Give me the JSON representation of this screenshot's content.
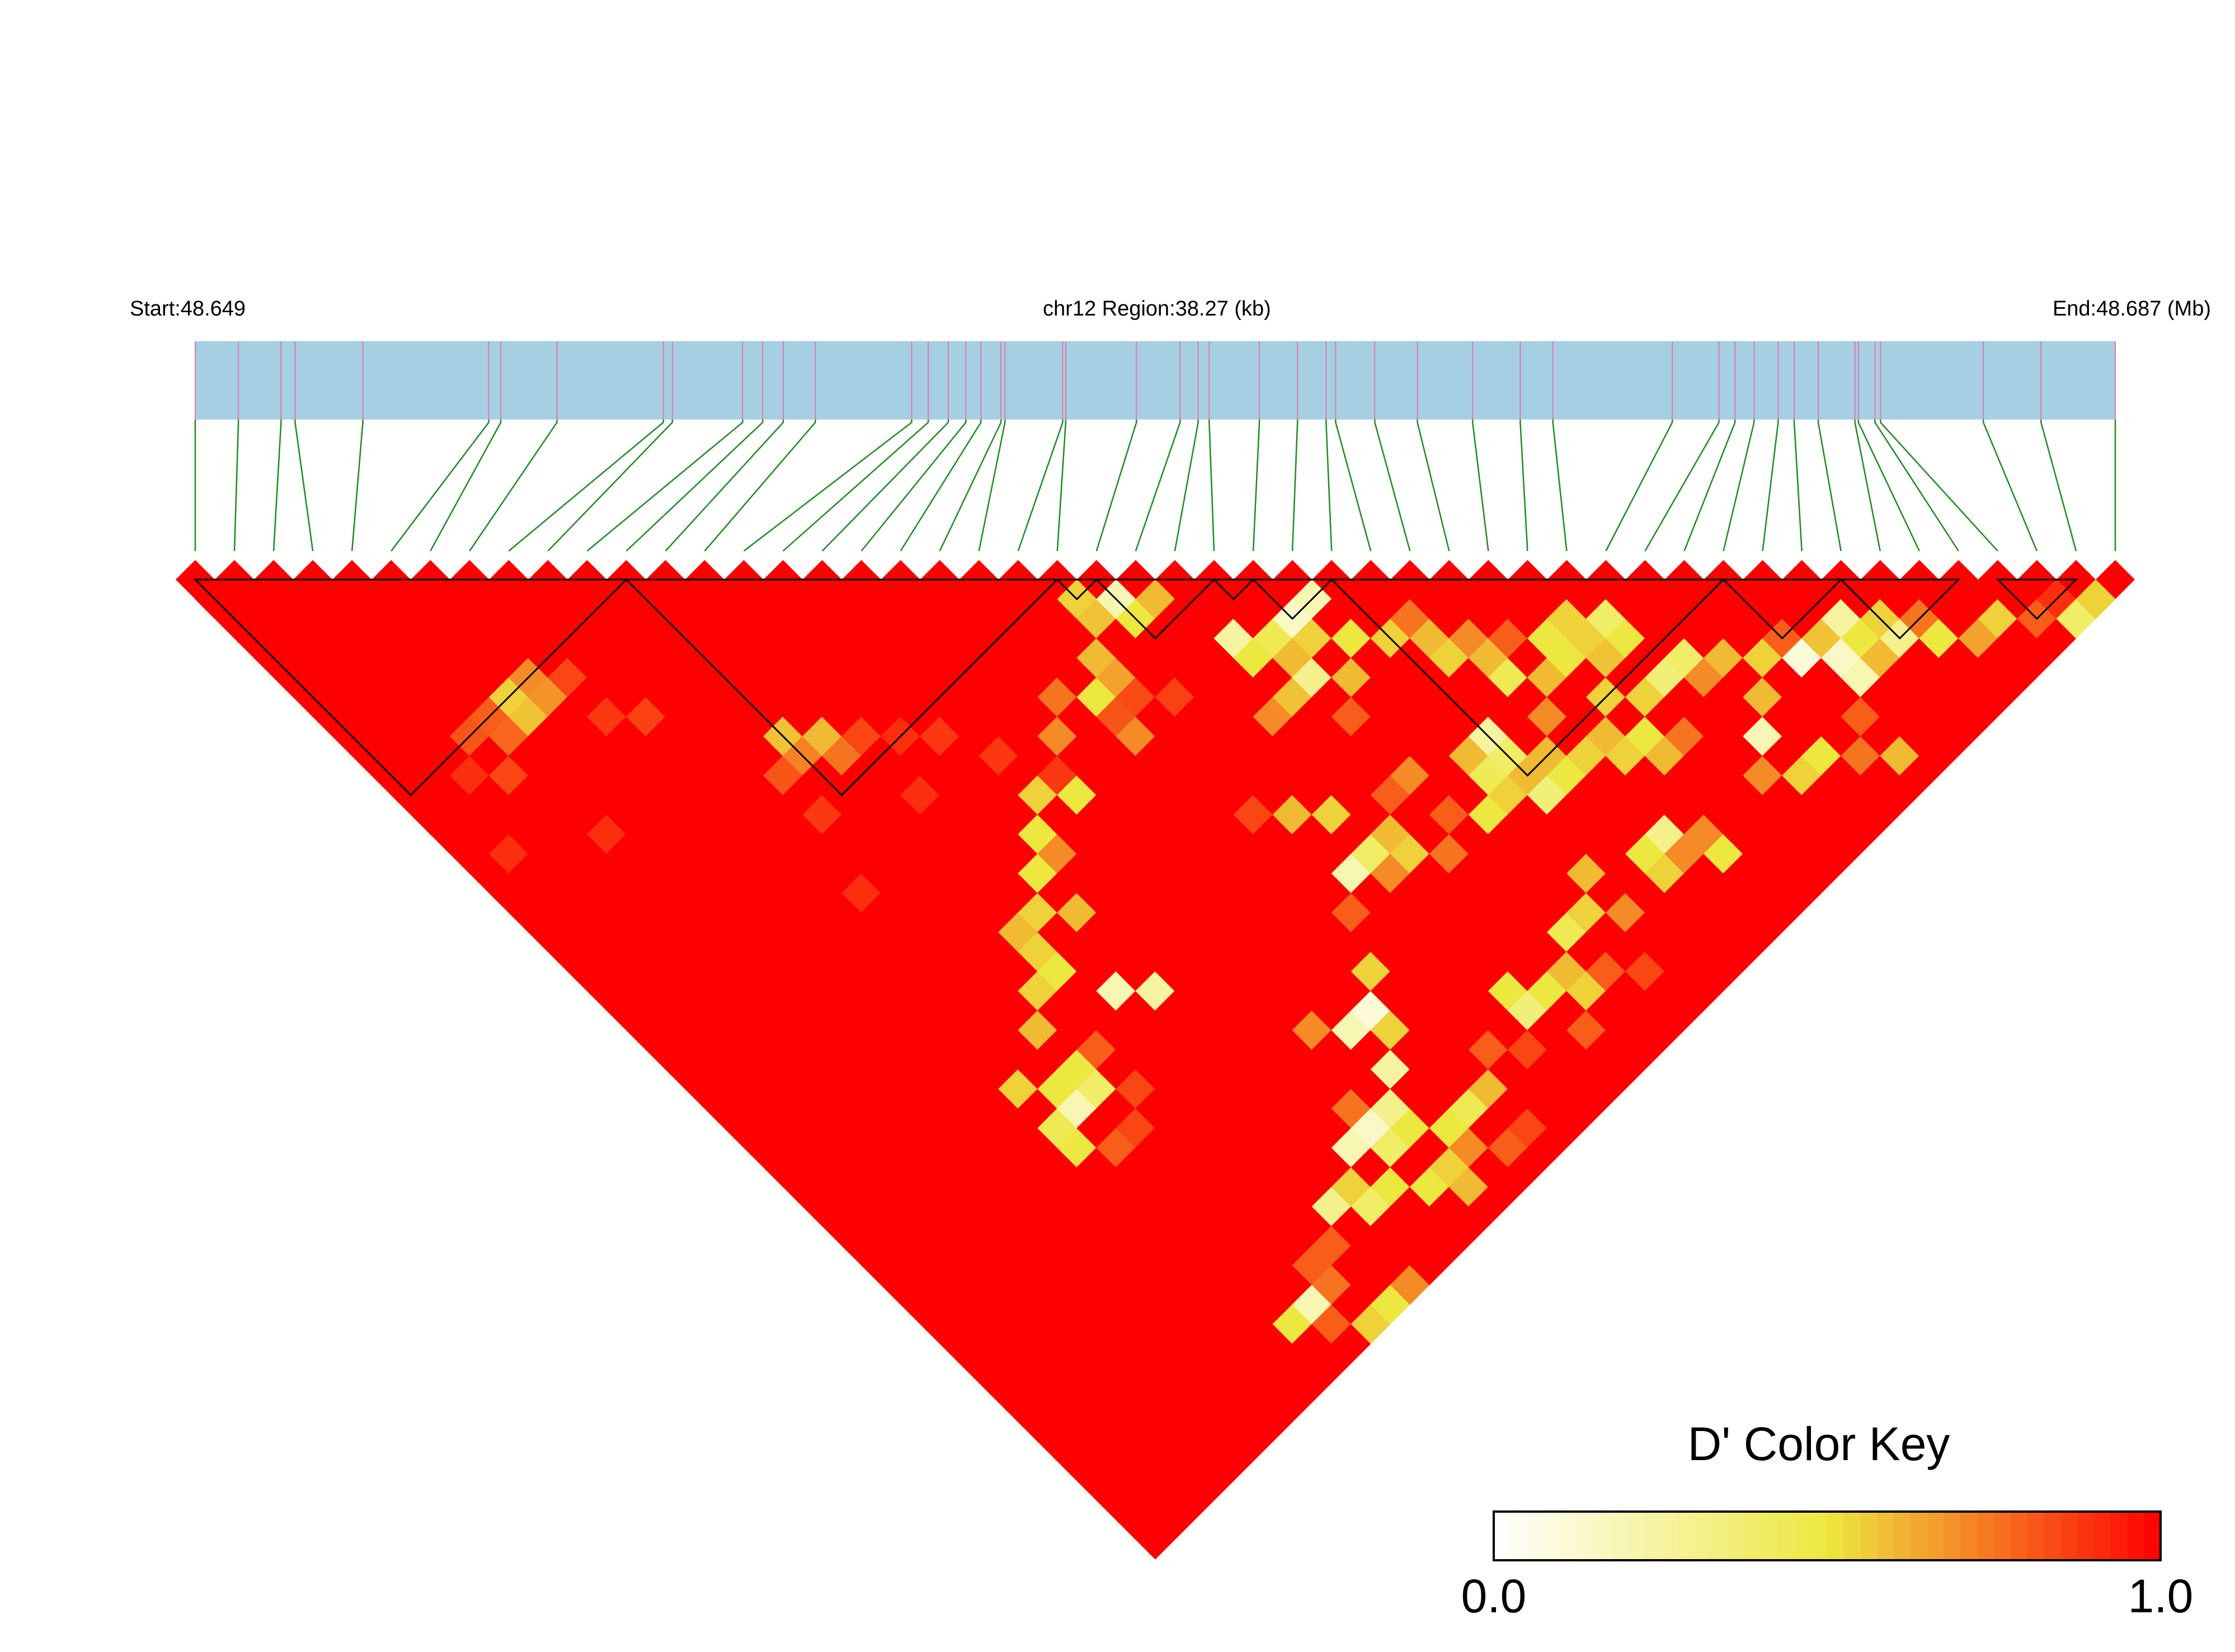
{
  "chart_data": {
    "type": "heatmap",
    "header": {
      "start_label": "Start:48.649",
      "region_label": "chr12 Region:38.27 (kb)",
      "end_label": "End:48.687 (Mb)"
    },
    "snp_count": 50,
    "snp_positions_kb": [
      0,
      0.86,
      1.71,
      1.99,
      3.34,
      5.85,
      6.09,
      7.21,
      9.33,
      9.51,
      10.91,
      11.31,
      11.72,
      12.36,
      14.28,
      14.61,
      15.01,
      15.36,
      15.66,
      16.06,
      16.14,
      17.29,
      17.35,
      18.76,
      19.63,
      19.99,
      20.21,
      21.21,
      21.97,
      22.54,
      22.73,
      23.51,
      24.36,
      25.46,
      26.41,
      27.06,
      29.44,
      30.37,
      30.69,
      31.07,
      31.55,
      31.87,
      32.35,
      33.08,
      33.15,
      33.48,
      33.59,
      35.64,
      36.79,
      38.27
    ],
    "color_scale": {
      "low_color": "#ffffff",
      "mid_color": "#ede840",
      "high_color": "#ff0000",
      "min": 0.0,
      "max": 1.0
    },
    "default_value": 1.0,
    "value_points": [
      {
        "i": 3,
        "j": 11,
        "v": 0.82
      },
      {
        "i": 4,
        "j": 11,
        "v": 0.8
      },
      {
        "i": 5,
        "j": 11,
        "v": 0.55
      },
      {
        "i": 6,
        "j": 11,
        "v": 0.7
      },
      {
        "i": 4,
        "j": 12,
        "v": 0.78
      },
      {
        "i": 5,
        "j": 12,
        "v": 0.58
      },
      {
        "i": 6,
        "j": 12,
        "v": 0.68
      },
      {
        "i": 7,
        "j": 12,
        "v": 0.85
      },
      {
        "i": 1,
        "j": 15,
        "v": 0.9
      },
      {
        "i": 2,
        "j": 12,
        "v": 0.9
      },
      {
        "i": 3,
        "j": 13,
        "v": 0.85
      },
      {
        "i": 7,
        "j": 14,
        "v": 0.88
      },
      {
        "i": 8,
        "j": 15,
        "v": 0.86
      },
      {
        "i": 4,
        "j": 17,
        "v": 0.9
      },
      {
        "i": 11,
        "j": 19,
        "v": 0.58
      },
      {
        "i": 11,
        "j": 20,
        "v": 0.72
      },
      {
        "i": 12,
        "j": 20,
        "v": 0.6
      },
      {
        "i": 12,
        "j": 21,
        "v": 0.75
      },
      {
        "i": 10,
        "j": 20,
        "v": 0.82
      },
      {
        "i": 13,
        "j": 21,
        "v": 0.85
      },
      {
        "i": 10,
        "j": 22,
        "v": 0.88
      },
      {
        "i": 14,
        "j": 22,
        "v": 0.9
      },
      {
        "i": 15,
        "j": 23,
        "v": 0.88
      },
      {
        "i": 16,
        "j": 25,
        "v": 0.88
      },
      {
        "i": 13,
        "j": 24,
        "v": 0.9
      },
      {
        "i": 9,
        "j": 25,
        "v": 0.9
      },
      {
        "i": 20,
        "j": 27,
        "v": 0.82
      },
      {
        "i": 21,
        "j": 27,
        "v": 0.84
      },
      {
        "i": 17,
        "j": 27,
        "v": 0.88
      },
      {
        "i": 22,
        "j": 28,
        "v": 0.86
      },
      {
        "i": 22,
        "j": 23,
        "v": 0.55
      },
      {
        "i": 22,
        "j": 24,
        "v": 0.58
      },
      {
        "i": 23,
        "j": 24,
        "v": 0.2
      },
      {
        "i": 23,
        "j": 25,
        "v": 0.5
      },
      {
        "i": 24,
        "j": 25,
        "v": 0.6
      },
      {
        "i": 21,
        "j": 25,
        "v": 0.6
      },
      {
        "i": 20,
        "j": 26,
        "v": 0.5
      },
      {
        "i": 21,
        "j": 26,
        "v": 0.65
      },
      {
        "i": 19,
        "j": 25,
        "v": 0.75
      },
      {
        "i": 18,
        "j": 26,
        "v": 0.7
      },
      {
        "i": 20,
        "j": 28,
        "v": 0.7
      },
      {
        "i": 25,
        "j": 28,
        "v": 0.25
      },
      {
        "i": 25,
        "j": 29,
        "v": 0.5
      },
      {
        "i": 26,
        "j": 29,
        "v": 0.45
      },
      {
        "i": 26,
        "j": 30,
        "v": 0.6
      },
      {
        "i": 27,
        "j": 30,
        "v": 0.55
      },
      {
        "i": 28,
        "j": 29,
        "v": 0.2
      },
      {
        "i": 27,
        "j": 29,
        "v": 0.15
      },
      {
        "i": 26,
        "j": 31,
        "v": 0.3
      },
      {
        "i": 28,
        "j": 31,
        "v": 0.5
      },
      {
        "i": 27,
        "j": 32,
        "v": 0.6
      },
      {
        "i": 29,
        "j": 32,
        "v": 0.55
      },
      {
        "i": 25,
        "j": 31,
        "v": 0.58
      },
      {
        "i": 26,
        "j": 33,
        "v": 0.8
      },
      {
        "i": 24,
        "j": 31,
        "v": 0.7
      },
      {
        "i": 30,
        "j": 32,
        "v": 0.75
      },
      {
        "i": 30,
        "j": 33,
        "v": 0.6
      },
      {
        "i": 31,
        "j": 34,
        "v": 0.7
      },
      {
        "i": 30,
        "j": 34,
        "v": 0.55
      },
      {
        "i": 31,
        "j": 35,
        "v": 0.6
      },
      {
        "i": 32,
        "j": 35,
        "v": 0.8
      },
      {
        "i": 31,
        "j": 36,
        "v": 0.45
      },
      {
        "i": 32,
        "j": 37,
        "v": 0.6
      },
      {
        "i": 33,
        "j": 36,
        "v": 0.5
      },
      {
        "i": 34,
        "j": 36,
        "v": 0.55
      },
      {
        "i": 35,
        "j": 38,
        "v": 0.5
      },
      {
        "i": 35,
        "j": 37,
        "v": 0.4
      },
      {
        "i": 34,
        "j": 38,
        "v": 0.58
      },
      {
        "i": 34,
        "j": 40,
        "v": 0.55
      },
      {
        "i": 35,
        "j": 40,
        "v": 0.35
      },
      {
        "i": 36,
        "j": 40,
        "v": 0.4
      },
      {
        "i": 37,
        "j": 41,
        "v": 0.6
      },
      {
        "i": 38,
        "j": 42,
        "v": 0.55
      },
      {
        "i": 36,
        "j": 41,
        "v": 0.7
      },
      {
        "i": 39,
        "j": 42,
        "v": 0.8
      },
      {
        "i": 40,
        "j": 43,
        "v": 0.58
      },
      {
        "i": 37,
        "j": 43,
        "v": 0.6
      },
      {
        "i": 33,
        "j": 39,
        "v": 0.55
      },
      {
        "i": 36,
        "j": 44,
        "v": 0.2
      },
      {
        "i": 39,
        "j": 43,
        "v": 0.1
      },
      {
        "i": 40,
        "j": 44,
        "v": 0.15
      },
      {
        "i": 41,
        "j": 43,
        "v": 0.25
      },
      {
        "i": 40,
        "j": 45,
        "v": 0.2
      },
      {
        "i": 41,
        "j": 44,
        "v": 0.5
      },
      {
        "i": 42,
        "j": 44,
        "v": 0.55
      },
      {
        "i": 42,
        "j": 45,
        "v": 0.3
      },
      {
        "i": 41,
        "j": 45,
        "v": 0.6
      },
      {
        "i": 43,
        "j": 46,
        "v": 0.5
      },
      {
        "i": 44,
        "j": 47,
        "v": 0.65
      },
      {
        "i": 45,
        "j": 47,
        "v": 0.55
      },
      {
        "i": 43,
        "j": 45,
        "v": 0.75
      },
      {
        "i": 48,
        "j": 49,
        "v": 0.55
      },
      {
        "i": 47,
        "j": 49,
        "v": 0.4
      },
      {
        "i": 46,
        "j": 48,
        "v": 0.8
      },
      {
        "i": 47,
        "j": 48,
        "v": 0.9
      },
      {
        "i": 39,
        "j": 46,
        "v": 0.8
      },
      {
        "i": 9,
        "j": 36,
        "v": 0.2
      },
      {
        "i": 8,
        "j": 36,
        "v": 0.45
      },
      {
        "i": 10,
        "j": 35,
        "v": 0.5
      },
      {
        "i": 10,
        "j": 36,
        "v": 0.4
      },
      {
        "i": 9,
        "j": 35,
        "v": 0.5
      },
      {
        "i": 10,
        "j": 33,
        "v": 0.6
      },
      {
        "i": 11,
        "j": 32,
        "v": 0.55
      },
      {
        "i": 12,
        "j": 32,
        "v": 0.5
      },
      {
        "i": 12,
        "j": 31,
        "v": 0.55
      },
      {
        "i": 12,
        "j": 30,
        "v": 0.6
      },
      {
        "i": 13,
        "j": 30,
        "v": 0.55
      },
      {
        "i": 14,
        "j": 31,
        "v": 0.6
      },
      {
        "i": 14,
        "j": 29,
        "v": 0.5
      },
      {
        "i": 15,
        "j": 29,
        "v": 0.7
      },
      {
        "i": 13,
        "j": 34,
        "v": 0.2
      },
      {
        "i": 14,
        "j": 35,
        "v": 0.25
      },
      {
        "i": 15,
        "j": 28,
        "v": 0.5
      },
      {
        "i": 16,
        "j": 27,
        "v": 0.55
      },
      {
        "i": 17,
        "j": 28,
        "v": 0.5
      },
      {
        "i": 8,
        "j": 34,
        "v": 0.55
      },
      {
        "i": 8,
        "j": 37,
        "v": 0.5
      },
      {
        "i": 9,
        "j": 38,
        "v": 0.8
      },
      {
        "i": 11,
        "j": 37,
        "v": 0.85
      },
      {
        "i": 10,
        "j": 38,
        "v": 0.85
      },
      {
        "i": 11,
        "j": 35,
        "v": 0.8
      },
      {
        "i": 15,
        "j": 44,
        "v": 0.2
      },
      {
        "i": 16,
        "j": 44,
        "v": 0.15
      },
      {
        "i": 17,
        "j": 44,
        "v": 0.3
      },
      {
        "i": 16,
        "j": 45,
        "v": 0.4
      },
      {
        "i": 17,
        "j": 45,
        "v": 0.5
      },
      {
        "i": 18,
        "j": 43,
        "v": 0.25
      },
      {
        "i": 18,
        "j": 41,
        "v": 0.2
      },
      {
        "i": 19,
        "j": 41,
        "v": 0.1
      },
      {
        "i": 19,
        "j": 42,
        "v": 0.55
      },
      {
        "i": 14,
        "j": 46,
        "v": 0.4
      },
      {
        "i": 13,
        "j": 45,
        "v": 0.3
      },
      {
        "i": 15,
        "j": 46,
        "v": 0.5
      },
      {
        "i": 14,
        "j": 45,
        "v": 0.55
      },
      {
        "i": 20,
        "j": 40,
        "v": 0.55
      },
      {
        "i": 12,
        "j": 46,
        "v": 0.8
      },
      {
        "i": 16,
        "j": 43,
        "v": 0.75
      },
      {
        "i": 17,
        "j": 40,
        "v": 0.7
      },
      {
        "i": 10,
        "j": 47,
        "v": 0.2
      },
      {
        "i": 9,
        "j": 47,
        "v": 0.5
      },
      {
        "i": 11,
        "j": 47,
        "v": 0.75
      },
      {
        "i": 10,
        "j": 48,
        "v": 0.8
      },
      {
        "i": 11,
        "j": 46,
        "v": 0.8
      },
      {
        "i": 12,
        "j": 49,
        "v": 0.5
      },
      {
        "i": 11,
        "j": 49,
        "v": 0.55
      },
      {
        "i": 13,
        "j": 49,
        "v": 0.7
      },
      {
        "i": 16,
        "j": 47,
        "v": 0.5
      },
      {
        "i": 17,
        "j": 47,
        "v": 0.55
      },
      {
        "i": 17,
        "j": 48,
        "v": 0.6
      },
      {
        "i": 18,
        "j": 47,
        "v": 0.7
      },
      {
        "i": 18,
        "j": 46,
        "v": 0.5
      },
      {
        "i": 19,
        "j": 46,
        "v": 0.45
      },
      {
        "i": 20,
        "j": 46,
        "v": 0.6
      },
      {
        "i": 19,
        "j": 48,
        "v": 0.8
      },
      {
        "i": 20,
        "j": 48,
        "v": 0.85
      },
      {
        "i": 21,
        "j": 45,
        "v": 0.8
      },
      {
        "i": 22,
        "j": 46,
        "v": 0.85
      },
      {
        "i": 23,
        "j": 45,
        "v": 0.35
      },
      {
        "i": 24,
        "j": 45,
        "v": 0.5
      },
      {
        "i": 25,
        "j": 45,
        "v": 0.6
      },
      {
        "i": 25,
        "j": 46,
        "v": 0.55
      },
      {
        "i": 26,
        "j": 44,
        "v": 0.45
      },
      {
        "i": 27,
        "j": 44,
        "v": 0.55
      },
      {
        "i": 28,
        "j": 45,
        "v": 0.7
      },
      {
        "i": 24,
        "j": 47,
        "v": 0.8
      },
      {
        "i": 23,
        "j": 44,
        "v": 0.5
      },
      {
        "i": 27,
        "j": 47,
        "v": 0.85
      },
      {
        "i": 26,
        "j": 46,
        "v": 0.8
      },
      {
        "i": 22,
        "j": 37,
        "v": 0.2
      },
      {
        "i": 23,
        "j": 37,
        "v": 0.4
      },
      {
        "i": 24,
        "j": 37,
        "v": 0.6
      },
      {
        "i": 24,
        "j": 38,
        "v": 0.55
      },
      {
        "i": 23,
        "j": 38,
        "v": 0.7
      },
      {
        "i": 27,
        "j": 39,
        "v": 0.5
      },
      {
        "i": 28,
        "j": 39,
        "v": 0.55
      },
      {
        "i": 28,
        "j": 38,
        "v": 0.45
      },
      {
        "i": 29,
        "j": 38,
        "v": 0.4
      },
      {
        "i": 29,
        "j": 39,
        "v": 0.6
      },
      {
        "i": 30,
        "j": 39,
        "v": 0.6
      },
      {
        "i": 30,
        "j": 40,
        "v": 0.5
      },
      {
        "i": 29,
        "j": 40,
        "v": 0.35
      },
      {
        "i": 31,
        "j": 40,
        "v": 0.55
      },
      {
        "i": 26,
        "j": 38,
        "v": 0.8
      },
      {
        "i": 25,
        "j": 39,
        "v": 0.75
      },
      {
        "i": 21,
        "j": 38,
        "v": 0.8
      },
      {
        "i": 23,
        "j": 35,
        "v": 0.55
      },
      {
        "i": 22,
        "j": 34,
        "v": 0.6
      },
      {
        "i": 26,
        "j": 36,
        "v": 0.7
      },
      {
        "i": 25,
        "j": 36,
        "v": 0.8
      },
      {
        "i": 21,
        "j": 33,
        "v": 0.85
      },
      {
        "i": 29,
        "j": 37,
        "v": 0.25
      },
      {
        "i": 28,
        "j": 37,
        "v": 0.6
      },
      {
        "i": 32,
        "j": 40,
        "v": 0.6
      },
      {
        "i": 32,
        "j": 41,
        "v": 0.55
      },
      {
        "i": 33,
        "j": 41,
        "v": 0.5
      },
      {
        "i": 33,
        "j": 42,
        "v": 0.6
      },
      {
        "i": 31,
        "j": 38,
        "v": 0.7
      },
      {
        "i": 34,
        "j": 42,
        "v": 0.75
      },
      {
        "i": 33,
        "j": 37,
        "v": 0.5
      },
      {
        "i": 34,
        "j": 37,
        "v": 0.55
      },
      {
        "i": 31,
        "j": 44,
        "v": 0.3
      },
      {
        "i": 30,
        "j": 44,
        "v": 0.5
      },
      {
        "i": 32,
        "j": 45,
        "v": 0.7
      },
      {
        "i": 32,
        "j": 46,
        "v": 0.5
      },
      {
        "i": 30,
        "j": 45,
        "v": 0.55
      },
      {
        "i": 31,
        "j": 45,
        "v": 0.7
      },
      {
        "i": 28,
        "j": 43,
        "v": 0.6
      },
      {
        "i": 37,
        "j": 46,
        "v": 0.5
      },
      {
        "i": 38,
        "j": 47,
        "v": 0.75
      },
      {
        "i": 36,
        "j": 46,
        "v": 0.55
      },
      {
        "i": 35,
        "j": 45,
        "v": 0.7
      },
      {
        "i": 39,
        "j": 48,
        "v": 0.6
      }
    ],
    "haplotype_blocks": [
      [
        0,
        11
      ],
      [
        11,
        22
      ],
      [
        22,
        23
      ],
      [
        23,
        26
      ],
      [
        26,
        27
      ],
      [
        27,
        29
      ],
      [
        29,
        39
      ],
      [
        39,
        42
      ],
      [
        42,
        45
      ],
      [
        46,
        48
      ]
    ],
    "legend": {
      "title": "D' Color Key",
      "min_label": "0.0",
      "max_label": "1.0",
      "placement": "bottom-right"
    }
  }
}
